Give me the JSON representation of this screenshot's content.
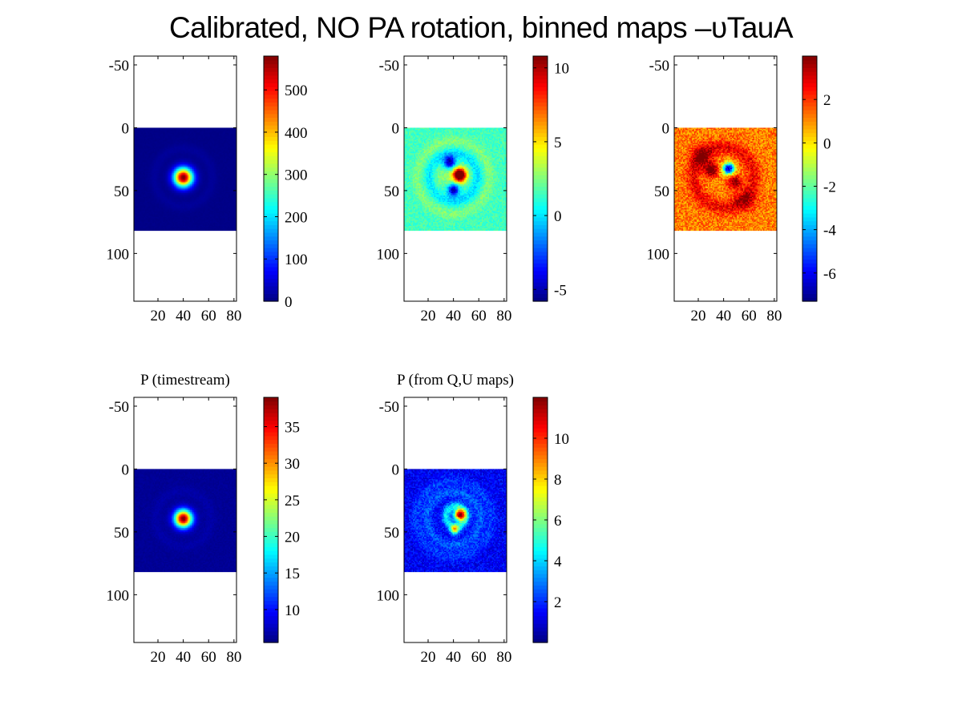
{
  "title": "Calibrated, NO PA rotation, binned maps –υTauA",
  "chart_data": [
    {
      "type": "heatmap",
      "title": "",
      "colormap": "jet",
      "xlim": [
        1,
        82
      ],
      "ylim": [
        -57,
        138
      ],
      "y_reversed": true,
      "data_extent": {
        "x": [
          1,
          82
        ],
        "y": [
          0,
          82
        ]
      },
      "xticks": [
        20,
        40,
        60,
        80
      ],
      "yticks": [
        -50,
        0,
        50,
        100
      ],
      "clim": [
        0,
        580
      ],
      "cbticks": [
        0,
        100,
        200,
        300,
        400,
        500
      ],
      "features": [
        {
          "kind": "gauss",
          "x": 40,
          "y": 39,
          "sigma": 5.2,
          "amp": 580
        },
        {
          "kind": "ring",
          "x": 40,
          "y": 39,
          "r": 23,
          "w": 3,
          "amp": 10
        }
      ],
      "background": 4,
      "noise": 2
    },
    {
      "type": "heatmap",
      "title": "",
      "colormap": "jet",
      "xlim": [
        1,
        82
      ],
      "ylim": [
        -57,
        138
      ],
      "y_reversed": true,
      "data_extent": {
        "x": [
          1,
          82
        ],
        "y": [
          0,
          82
        ]
      },
      "xticks": [
        20,
        40,
        60,
        80
      ],
      "yticks": [
        -50,
        0,
        50,
        100
      ],
      "clim": [
        -5.8,
        10.8
      ],
      "cbticks": [
        -5,
        0,
        5,
        10
      ],
      "features": [
        {
          "kind": "gauss",
          "x": 45,
          "y": 37,
          "sigma": 3.6,
          "amp": 13
        },
        {
          "kind": "gauss",
          "x": 37,
          "y": 27,
          "sigma": 3.6,
          "amp": -7
        },
        {
          "kind": "gauss",
          "x": 40,
          "y": 49,
          "sigma": 3.4,
          "amp": -7
        },
        {
          "kind": "gauss",
          "x": 36,
          "y": 38,
          "sigma": 9,
          "amp": 1.2
        },
        {
          "kind": "ring",
          "x": 40,
          "y": 39,
          "r": 19,
          "w": 3,
          "amp": -1.6
        },
        {
          "kind": "ring",
          "x": 40,
          "y": 39,
          "r": 29,
          "w": 3,
          "amp": 1
        }
      ],
      "background": 1.5,
      "noise": 0.7
    },
    {
      "type": "heatmap",
      "title": "",
      "colormap": "jet",
      "xlim": [
        1,
        82
      ],
      "ylim": [
        -57,
        138
      ],
      "y_reversed": true,
      "data_extent": {
        "x": [
          1,
          82
        ],
        "y": [
          0,
          82
        ]
      },
      "xticks": [
        20,
        40,
        60,
        80
      ],
      "yticks": [
        -50,
        0,
        50,
        100
      ],
      "clim": [
        -7.3,
        4
      ],
      "cbticks": [
        -6,
        -4,
        -2,
        0,
        2
      ],
      "features": [
        {
          "kind": "gauss",
          "x": 44,
          "y": 32,
          "sigma": 3.2,
          "amp": -8
        },
        {
          "kind": "gauss",
          "x": 30,
          "y": 33,
          "sigma": 3.6,
          "amp": 3.5
        },
        {
          "kind": "gauss",
          "x": 49,
          "y": 43,
          "sigma": 3.6,
          "amp": 3
        },
        {
          "kind": "gauss",
          "x": 22,
          "y": 22,
          "sigma": 6,
          "amp": 2
        },
        {
          "kind": "gauss",
          "x": 58,
          "y": 58,
          "sigma": 6,
          "amp": 1.5
        },
        {
          "kind": "ring",
          "x": 40,
          "y": 39,
          "r": 24,
          "w": 4,
          "amp": 1.5
        }
      ],
      "background": 1.2,
      "noise": 0.9
    },
    {
      "type": "heatmap",
      "title": "P (timestream)",
      "colormap": "jet",
      "xlim": [
        1,
        82
      ],
      "ylim": [
        -57,
        138
      ],
      "y_reversed": true,
      "data_extent": {
        "x": [
          1,
          82
        ],
        "y": [
          0,
          82
        ]
      },
      "xticks": [
        20,
        40,
        60,
        80
      ],
      "yticks": [
        -50,
        0,
        50,
        100
      ],
      "clim": [
        5.5,
        39
      ],
      "cbticks": [
        10,
        15,
        20,
        25,
        30,
        35
      ],
      "features": [
        {
          "kind": "gauss",
          "x": 40,
          "y": 39,
          "sigma": 4.8,
          "amp": 33
        },
        {
          "kind": "ring",
          "x": 40,
          "y": 39,
          "r": 22,
          "w": 3,
          "amp": 0.6
        }
      ],
      "background": 6.2,
      "noise": 0.3
    },
    {
      "type": "heatmap",
      "title": "P (from Q,U maps)",
      "colormap": "jet",
      "xlim": [
        1,
        82
      ],
      "ylim": [
        -57,
        138
      ],
      "y_reversed": true,
      "data_extent": {
        "x": [
          1,
          82
        ],
        "y": [
          0,
          82
        ]
      },
      "xticks": [
        20,
        40,
        60,
        80
      ],
      "yticks": [
        -50,
        0,
        50,
        100
      ],
      "clim": [
        0,
        12
      ],
      "cbticks": [
        2,
        4,
        6,
        8,
        10
      ],
      "features": [
        {
          "kind": "gauss",
          "x": 45,
          "y": 36,
          "sigma": 3,
          "amp": 10.5
        },
        {
          "kind": "gauss",
          "x": 41,
          "y": 48,
          "sigma": 2.6,
          "amp": 5.5
        },
        {
          "kind": "ring",
          "x": 42,
          "y": 37,
          "r": 8,
          "w": 2.5,
          "amp": 3
        },
        {
          "kind": "ring",
          "x": 40,
          "y": 39,
          "r": 21,
          "w": 3,
          "amp": 1.2
        },
        {
          "kind": "ring",
          "x": 40,
          "y": 39,
          "r": 30,
          "w": 3,
          "amp": 0.8
        }
      ],
      "background": 1.4,
      "noise": 0.7
    }
  ]
}
